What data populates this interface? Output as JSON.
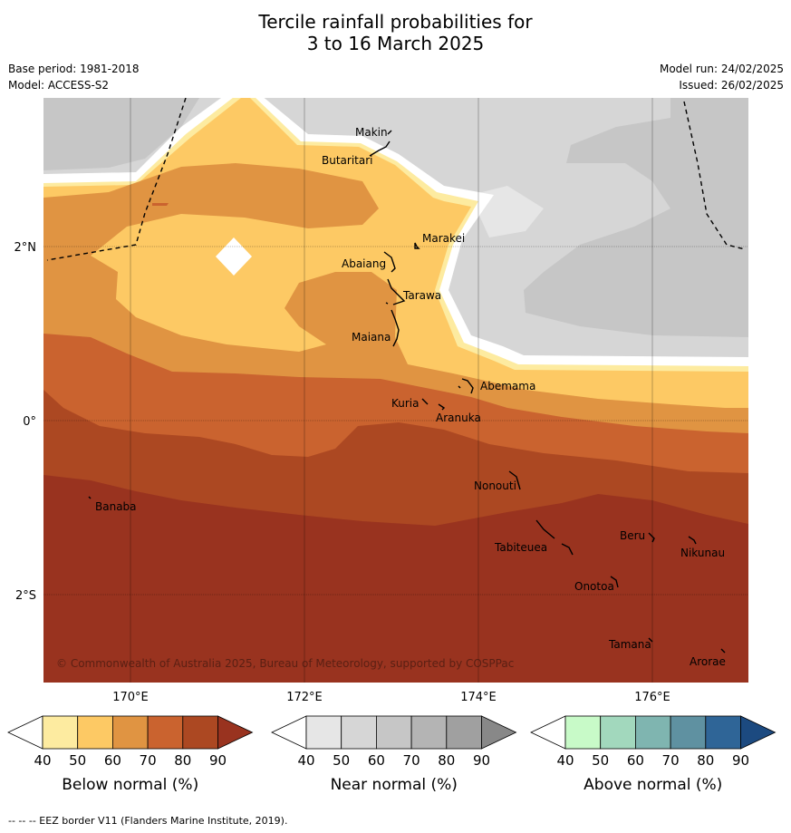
{
  "title": {
    "line1": "Tercile rainfall probabilities for",
    "line2": "3 to 16 March 2025"
  },
  "meta": {
    "base_period": "Base period: 1981-2018",
    "model": "Model: ACCESS-S2",
    "model_run": "Model run: 24/02/2025",
    "issued": "Issued: 26/02/2025"
  },
  "map": {
    "lon_ticks": [
      "170°E",
      "172°E",
      "174°E",
      "176°E"
    ],
    "lat_ticks": [
      "2°N",
      "0°",
      "2°S"
    ],
    "places": [
      "Makin",
      "Butaritari",
      "Marakei",
      "Abaiang",
      "Tarawa",
      "Maiana",
      "Abemama",
      "Kuria",
      "Aranuka",
      "Nonouti",
      "Banaba",
      "Beru",
      "Tabiteuea",
      "Nikunau",
      "Onotoa",
      "Tamana",
      "Arorae"
    ],
    "copyright": "© Commonwealth of Australia 2025, Bureau of Meteorology, supported by COSPPac"
  },
  "legends": [
    {
      "title": "Below normal (%)",
      "ticks": [
        "40",
        "50",
        "60",
        "70",
        "80",
        "90"
      ],
      "colors": [
        "#fdeba0",
        "#fdc964",
        "#e09442",
        "#ca632f",
        "#ac4822",
        "#99331f"
      ]
    },
    {
      "title": "Near normal (%)",
      "ticks": [
        "40",
        "50",
        "60",
        "70",
        "80",
        "90"
      ],
      "colors": [
        "#e6e6e6",
        "#d6d6d6",
        "#c6c6c6",
        "#b4b4b4",
        "#a0a0a0",
        "#888888"
      ]
    },
    {
      "title": "Above normal (%)",
      "ticks": [
        "40",
        "50",
        "60",
        "70",
        "80",
        "90"
      ],
      "colors": [
        "#c8fac8",
        "#a2d8bd",
        "#7fb5b0",
        "#5f91a1",
        "#2f6597",
        "#1c4a80"
      ]
    }
  ],
  "footnote": "-- -- -- EEZ border V11 (Flanders Marine Institute, 2019)."
}
